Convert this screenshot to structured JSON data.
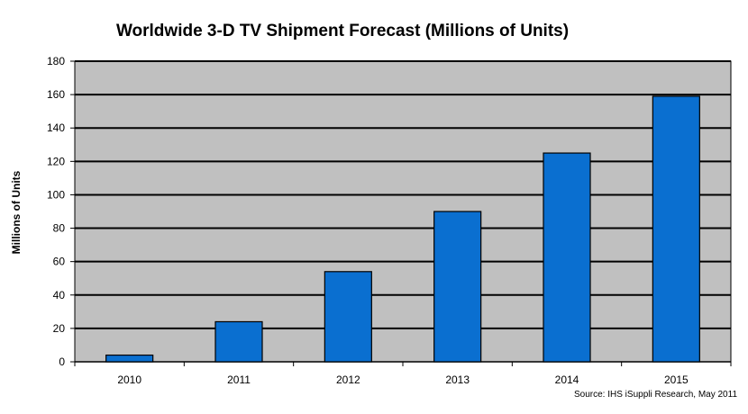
{
  "chart_data": {
    "type": "bar",
    "title": "Worldwide 3-D TV Shipment Forecast (Millions of Units)",
    "xlabel": "",
    "ylabel": "Millions of Units",
    "categories": [
      "2010",
      "2011",
      "2012",
      "2013",
      "2014",
      "2015"
    ],
    "values": [
      4,
      24,
      54,
      90,
      125,
      159
    ],
    "ylim": [
      0,
      180
    ],
    "yticks": [
      "0",
      "20",
      "40",
      "60",
      "80",
      "100",
      "120",
      "140",
      "160",
      "180"
    ],
    "grid": true,
    "legend": "none",
    "source": "Source: IHS iSuppli Research, May 2011",
    "colors": {
      "bar": "#0a6fd0",
      "bar_edge": "#000000",
      "plot_bg": "#c0c0c0",
      "grid": "#000000"
    }
  }
}
